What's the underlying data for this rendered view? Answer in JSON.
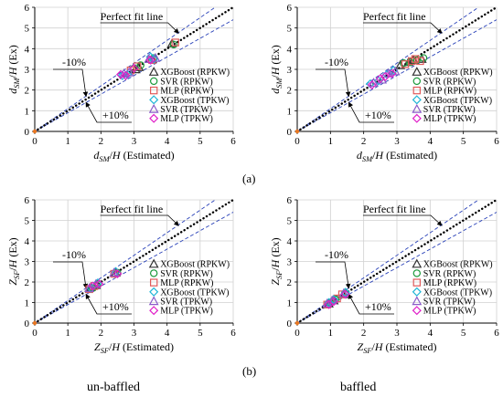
{
  "figure": {
    "label_a": "(a)",
    "label_b": "(b)",
    "column_left": "un-baffled",
    "column_right": "baffled"
  },
  "legend_entries": [
    {
      "name": "XGBoost (RPKW)",
      "marker": "triangle",
      "color": "#333333"
    },
    {
      "name": "SVR (RPKW)",
      "marker": "circle",
      "color": "#1a9a3a"
    },
    {
      "name": "MLP (RPKW)",
      "marker": "square",
      "color": "#e05a5a"
    },
    {
      "name": "XGBoost (TPKW)",
      "marker": "diamond",
      "color": "#1fb6d6"
    },
    {
      "name": "SVR (TPKW)",
      "marker": "triangle",
      "color": "#8a5cc8"
    },
    {
      "name": "MLP (TPKW)",
      "marker": "diamond",
      "color": "#e020c8"
    }
  ],
  "chart_data": [
    {
      "type": "scatter",
      "xlabel": "d_SM/H (Estimated)",
      "ylabel": "d_SM/H (Ex)",
      "xlim": [
        0,
        6
      ],
      "ylim": [
        0,
        6
      ],
      "xticks": [
        "0",
        "1",
        "2",
        "3",
        "4",
        "5",
        "6"
      ],
      "yticks": [
        "0",
        "1",
        "2",
        "3",
        "4",
        "5",
        "6"
      ],
      "annotations": [
        "Perfect fit line",
        "-10%",
        "+10%"
      ],
      "series": [
        {
          "name": "XGBoost (RPKW)",
          "points": [
            [
              3.05,
              3.0
            ],
            [
              3.15,
              3.1
            ],
            [
              3.55,
              3.5
            ],
            [
              4.15,
              4.25
            ]
          ]
        },
        {
          "name": "SVR (RPKW)",
          "points": [
            [
              3.0,
              3.05
            ],
            [
              3.2,
              3.2
            ],
            [
              3.6,
              3.55
            ],
            [
              4.2,
              4.2
            ]
          ]
        },
        {
          "name": "MLP (RPKW)",
          "points": [
            [
              2.9,
              2.95
            ],
            [
              3.1,
              3.15
            ],
            [
              3.55,
              3.45
            ],
            [
              4.25,
              4.3
            ]
          ]
        },
        {
          "name": "XGBoost (TPKW)",
          "points": [
            [
              2.65,
              2.7
            ],
            [
              2.8,
              2.75
            ],
            [
              3.5,
              3.6
            ],
            [
              3.6,
              3.5
            ]
          ]
        },
        {
          "name": "SVR (TPKW)",
          "points": [
            [
              2.7,
              2.8
            ],
            [
              2.85,
              2.85
            ],
            [
              3.45,
              3.5
            ],
            [
              3.65,
              3.55
            ]
          ]
        },
        {
          "name": "MLP (TPKW)",
          "points": [
            [
              2.6,
              2.75
            ],
            [
              2.75,
              2.7
            ],
            [
              3.0,
              3.05
            ],
            [
              3.5,
              3.45
            ]
          ]
        }
      ]
    },
    {
      "type": "scatter",
      "xlabel": "d_SM/H (Estimated)",
      "ylabel": "d_SM/H (Ex)",
      "xlim": [
        0,
        6
      ],
      "ylim": [
        0,
        6
      ],
      "xticks": [
        "0",
        "1",
        "2",
        "3",
        "4",
        "5",
        "6"
      ],
      "yticks": [
        "0",
        "1",
        "2",
        "3",
        "4",
        "5",
        "6"
      ],
      "annotations": [
        "Perfect fit line",
        "-10%",
        "+10%"
      ],
      "series": [
        {
          "name": "XGBoost (RPKW)",
          "points": [
            [
              3.1,
              3.2
            ],
            [
              3.35,
              3.35
            ],
            [
              3.5,
              3.45
            ],
            [
              3.75,
              3.5
            ]
          ]
        },
        {
          "name": "SVR (RPKW)",
          "points": [
            [
              3.2,
              3.3
            ],
            [
              3.4,
              3.35
            ],
            [
              3.6,
              3.45
            ],
            [
              3.8,
              3.55
            ]
          ]
        },
        {
          "name": "MLP (RPKW)",
          "points": [
            [
              3.25,
              3.25
            ],
            [
              3.45,
              3.4
            ],
            [
              3.55,
              3.5
            ],
            [
              3.7,
              3.4
            ]
          ]
        },
        {
          "name": "XGBoost (TPKW)",
          "points": [
            [
              2.2,
              2.3
            ],
            [
              2.45,
              2.45
            ],
            [
              2.7,
              2.75
            ],
            [
              2.9,
              2.95
            ]
          ]
        },
        {
          "name": "SVR (TPKW)",
          "points": [
            [
              2.3,
              2.35
            ],
            [
              2.55,
              2.5
            ],
            [
              2.75,
              2.8
            ],
            [
              2.95,
              2.9
            ]
          ]
        },
        {
          "name": "MLP (TPKW)",
          "points": [
            [
              2.25,
              2.25
            ],
            [
              2.5,
              2.55
            ],
            [
              2.65,
              2.65
            ],
            [
              2.85,
              2.8
            ]
          ]
        }
      ]
    },
    {
      "type": "scatter",
      "xlabel": "Z_SF/H (Estimated)",
      "ylabel": "Z_SF/H (Ex)",
      "xlim": [
        0,
        6
      ],
      "ylim": [
        0,
        6
      ],
      "xticks": [
        "0",
        "1",
        "2",
        "3",
        "4",
        "5",
        "6"
      ],
      "yticks": [
        "0",
        "1",
        "2",
        "3",
        "4",
        "5",
        "6"
      ],
      "annotations": [
        "Perfect fit line",
        "-10%",
        "+10%"
      ],
      "series": [
        {
          "name": "XGBoost (RPKW)",
          "points": [
            [
              1.7,
              1.75
            ],
            [
              1.85,
              1.85
            ],
            [
              2.45,
              2.45
            ]
          ]
        },
        {
          "name": "SVR (RPKW)",
          "points": [
            [
              1.75,
              1.7
            ],
            [
              1.9,
              1.9
            ],
            [
              2.5,
              2.45
            ]
          ]
        },
        {
          "name": "MLP (RPKW)",
          "points": [
            [
              1.65,
              1.65
            ],
            [
              1.8,
              1.8
            ],
            [
              2.4,
              2.4
            ]
          ]
        },
        {
          "name": "XGBoost (TPKW)",
          "points": [
            [
              1.7,
              1.7
            ],
            [
              1.9,
              1.95
            ],
            [
              2.45,
              2.5
            ]
          ]
        },
        {
          "name": "SVR (TPKW)",
          "points": [
            [
              1.65,
              1.7
            ],
            [
              1.85,
              1.9
            ],
            [
              2.4,
              2.45
            ]
          ]
        },
        {
          "name": "MLP (TPKW)",
          "points": [
            [
              1.75,
              1.8
            ],
            [
              1.95,
              1.9
            ],
            [
              2.5,
              2.4
            ]
          ]
        }
      ]
    },
    {
      "type": "scatter",
      "xlabel": "Z_SF/H (Estimated)",
      "ylabel": "Z_SF/H (Ex)",
      "xlim": [
        0,
        6
      ],
      "ylim": [
        0,
        6
      ],
      "xticks": [
        "0",
        "1",
        "2",
        "3",
        "4",
        "5",
        "6"
      ],
      "yticks": [
        "0",
        "1",
        "2",
        "3",
        "4",
        "5",
        "6"
      ],
      "annotations": [
        "Perfect fit line",
        "-10%",
        "+10%"
      ],
      "series": [
        {
          "name": "XGBoost (RPKW)",
          "points": [
            [
              0.95,
              0.95
            ],
            [
              1.1,
              1.1
            ],
            [
              1.4,
              1.4
            ]
          ]
        },
        {
          "name": "SVR (RPKW)",
          "points": [
            [
              1.0,
              1.0
            ],
            [
              1.15,
              1.15
            ],
            [
              1.45,
              1.45
            ]
          ]
        },
        {
          "name": "MLP (RPKW)",
          "points": [
            [
              0.9,
              0.9
            ],
            [
              1.2,
              1.2
            ],
            [
              1.35,
              1.4
            ]
          ]
        },
        {
          "name": "XGBoost (TPKW)",
          "points": [
            [
              0.95,
              1.0
            ],
            [
              1.1,
              1.15
            ],
            [
              1.45,
              1.5
            ]
          ]
        },
        {
          "name": "SVR (TPKW)",
          "points": [
            [
              0.9,
              0.95
            ],
            [
              1.05,
              1.1
            ],
            [
              1.4,
              1.45
            ]
          ]
        },
        {
          "name": "MLP (TPKW)",
          "points": [
            [
              0.95,
              0.9
            ],
            [
              1.1,
              1.05
            ],
            [
              1.45,
              1.4
            ]
          ]
        }
      ]
    }
  ]
}
